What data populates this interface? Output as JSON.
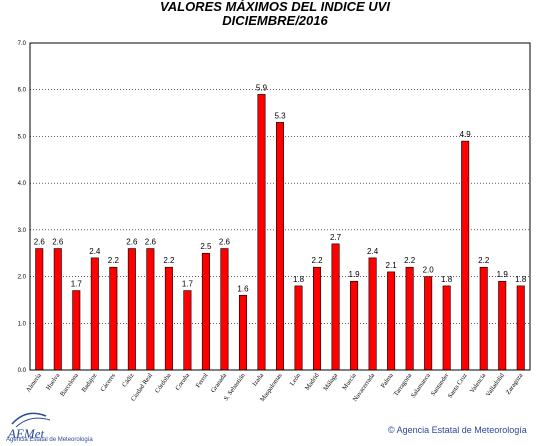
{
  "header": {
    "title": "VALORES MÁXIMOS DEL INDICE UVI",
    "subtitle": "DICIEMBRE/2016"
  },
  "footer": {
    "logo_text": "AEMet",
    "logo_subtext": "Agencia Estatal de Meteorología",
    "copyright": "Agencia Estatal de Meteorología",
    "copyright_symbol": "©"
  },
  "colors": {
    "bar": "#ff0000",
    "bar_stroke": "#000000",
    "grid": "#000000",
    "logo": "#2a4a9a"
  },
  "chart_data": {
    "type": "bar",
    "title": "VALORES MÁXIMOS DEL INDICE UVI",
    "subtitle": "DICIEMBRE/2016",
    "xlabel": "",
    "ylabel": "",
    "ylim": [
      0,
      7
    ],
    "yticks": [
      "0.0",
      "1.0",
      "2.0",
      "3.0",
      "4.0",
      "5.0",
      "6.0",
      "7.0"
    ],
    "grid": true,
    "legend": "none",
    "categories": [
      "Almería",
      "Huelva",
      "Barcelona",
      "Badajoz",
      "Cáceres",
      "Cádiz",
      "Ciudad Real",
      "Córdoba",
      "Coruña",
      "Ferrol",
      "Granada",
      "S. Sebastián",
      "Izaña",
      "Maspalomas",
      "León",
      "Madrid",
      "Málaga",
      "Murcia",
      "Navacerrada",
      "Palma",
      "Tarragona",
      "Salamanca",
      "Santander",
      "Santa Cruz",
      "Valencia",
      "Valladolid",
      "Zaragoza"
    ],
    "values": [
      2.6,
      2.6,
      1.7,
      2.4,
      2.2,
      2.6,
      2.6,
      2.2,
      1.7,
      2.5,
      2.6,
      1.6,
      5.9,
      5.3,
      1.8,
      2.2,
      2.7,
      1.9,
      2.4,
      2.1,
      2.2,
      2.0,
      1.8,
      4.9,
      2.2,
      1.9,
      1.8
    ],
    "data_labels": [
      "2.6",
      "2.6",
      "1.7",
      "2.4",
      "2.2",
      "2.6",
      "2.6",
      "2.2",
      "1.7",
      "2.5",
      "2.6",
      "1.6",
      "5.9",
      "5.3",
      "1.8",
      "2.2",
      "2.7",
      "1.9",
      "2.4",
      "2.1",
      "2.2",
      "2.0",
      "1.8",
      "4.9",
      "2.2",
      "1.9",
      "1.8"
    ]
  }
}
